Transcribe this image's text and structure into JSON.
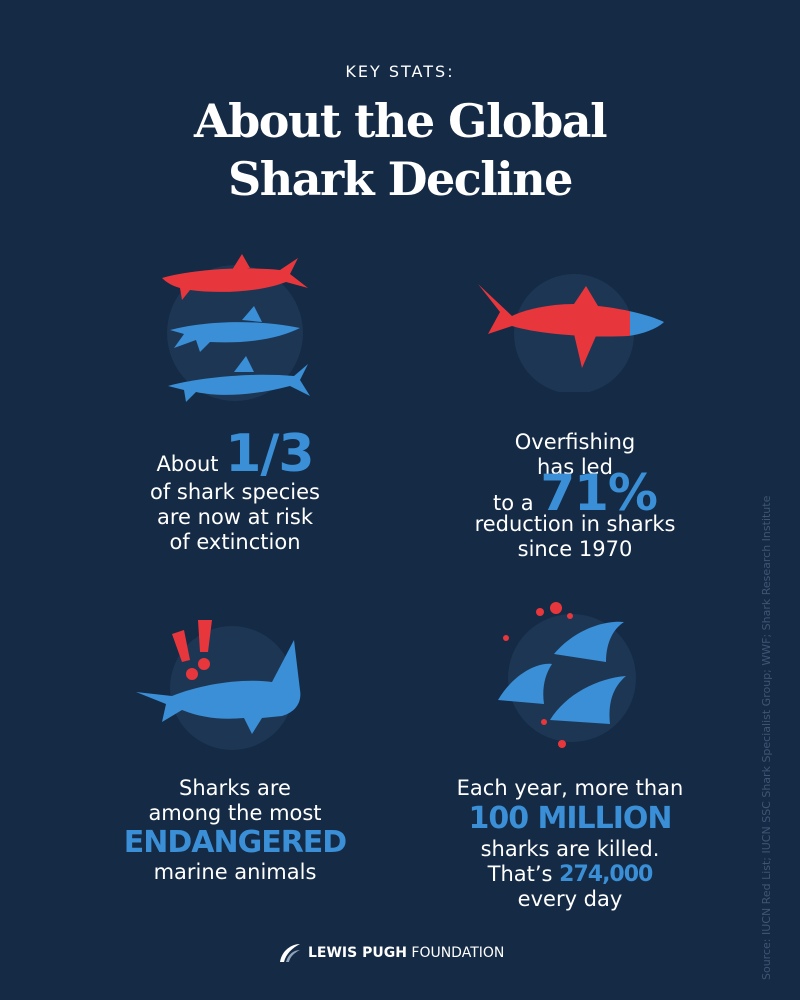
{
  "header": {
    "kicker": "KEY STATS:",
    "title_line1": "About the Global",
    "title_line2": "Shark Decline"
  },
  "stats": [
    {
      "icon": "three-sharks-icon",
      "line1_pre": "About ",
      "line1_big": "1/3",
      "line2": "of shark species",
      "line3": "are now at risk",
      "line4": "of extinction"
    },
    {
      "icon": "shark-71-percent-icon",
      "line1": "Overfishing",
      "line2": "has led",
      "line3_pre": "to a ",
      "line3_big": "71%",
      "line4": "reduction in sharks",
      "line5": "since 1970"
    },
    {
      "icon": "shark-warning-icon",
      "line1": "Sharks are",
      "line2": "among the most",
      "line3_big": "ENDANGERED",
      "line4": "marine animals"
    },
    {
      "icon": "shark-fins-blood-icon",
      "line1": "Each year, more than",
      "line2_big": "100 MILLION",
      "line3": "sharks are killed.",
      "line4_pre": "That’s ",
      "line4_big": "274,000",
      "line5": "every day"
    }
  ],
  "source": "Source: IUCN Red List; IUCN SSC Shark Specialist Group; WWF; Shark Research Institute",
  "footer": {
    "brand_bold": "LEWIS PUGH",
    "brand_rest": " FOUNDATION"
  },
  "colors": {
    "background": "#142a45",
    "accent_blue": "#3a8fd6",
    "accent_red": "#e8373c",
    "circle": "#1d3654"
  }
}
